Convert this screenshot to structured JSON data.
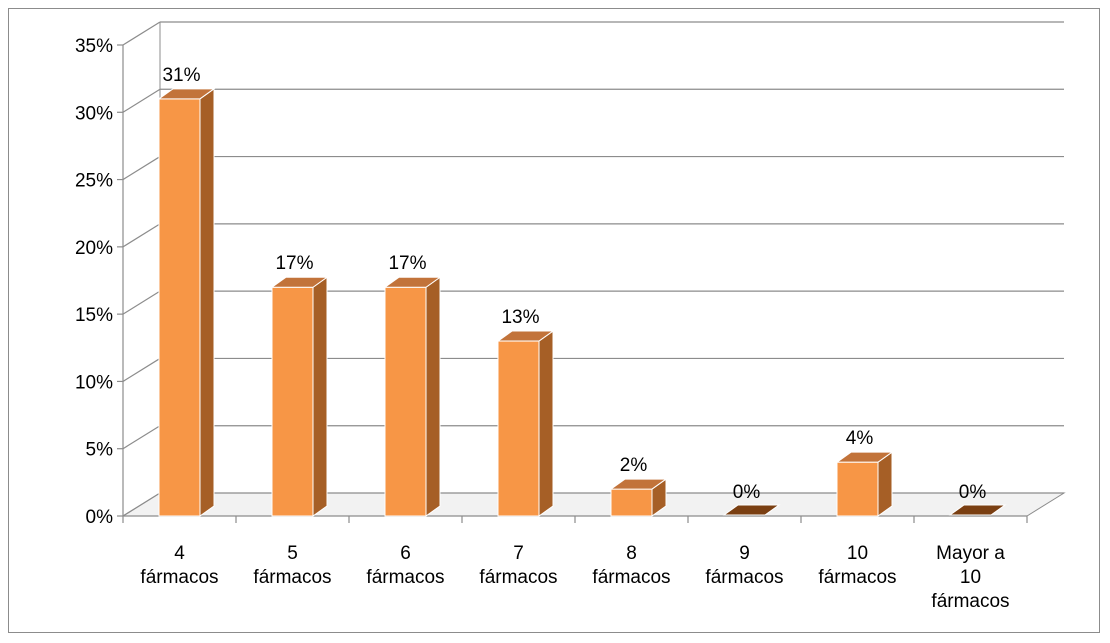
{
  "chart_data": {
    "type": "bar",
    "categories": [
      [
        "4",
        "fármacos"
      ],
      [
        "5",
        "fármacos"
      ],
      [
        "6",
        "fármacos"
      ],
      [
        "7",
        "fármacos"
      ],
      [
        "8",
        "fármacos"
      ],
      [
        "9",
        "fármacos"
      ],
      [
        "10",
        "fármacos"
      ],
      [
        "Mayor a",
        "10",
        "fármacos"
      ]
    ],
    "values": [
      31,
      17,
      17,
      13,
      2,
      0,
      4,
      0
    ],
    "data_labels": [
      "31%",
      "17%",
      "17%",
      "13%",
      "2%",
      "0%",
      "4%",
      "0%"
    ],
    "yticks": [
      "0%",
      "5%",
      "10%",
      "15%",
      "20%",
      "25%",
      "30%",
      "35%"
    ],
    "ylim": [
      0,
      35
    ],
    "grid": true,
    "title": "",
    "xlabel": "",
    "ylabel": "",
    "colors": {
      "bar_front": "#f79646",
      "bar_side": "#a65f26",
      "bar_top": "#c2733a",
      "grid": "#8c8c8c",
      "floor": "#f2f2f2"
    }
  }
}
